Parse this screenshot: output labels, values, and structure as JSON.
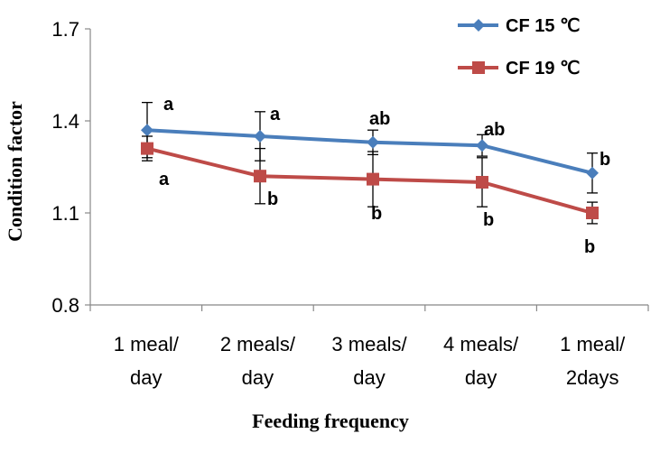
{
  "chart_data": {
    "type": "line",
    "xlabel": "Feeding frequency",
    "ylabel": "Condition factor",
    "ylim": [
      0.8,
      1.7
    ],
    "yticks": [
      0.8,
      1.1,
      1.4,
      1.7
    ],
    "ytick_labels": [
      "0.8",
      "1.1",
      "1.4",
      "1.7"
    ],
    "categories": [
      [
        "1 meal/",
        "day"
      ],
      [
        "2 meals/",
        "day"
      ],
      [
        "3 meals/",
        "day"
      ],
      [
        "4 meals/",
        "day"
      ],
      [
        "1 meal/",
        "2days"
      ]
    ],
    "legend_position": "top-right",
    "series": [
      {
        "name": "CF 15 ℃",
        "color": "#4A7EBB",
        "marker": "diamond",
        "values": [
          1.37,
          1.35,
          1.33,
          1.32,
          1.23
        ],
        "errors": [
          0.09,
          0.08,
          0.04,
          0.035,
          0.065
        ],
        "labels": [
          "a",
          "a",
          "ab",
          "ab",
          "b"
        ],
        "label_position": "above"
      },
      {
        "name": "CF 19 ℃",
        "color": "#BE4B48",
        "marker": "square",
        "values": [
          1.31,
          1.22,
          1.21,
          1.2,
          1.1
        ],
        "errors": [
          0.04,
          0.09,
          0.09,
          0.08,
          0.035
        ],
        "labels": [
          "a",
          "b",
          "b",
          "b",
          "b"
        ],
        "label_position": "below"
      }
    ]
  }
}
